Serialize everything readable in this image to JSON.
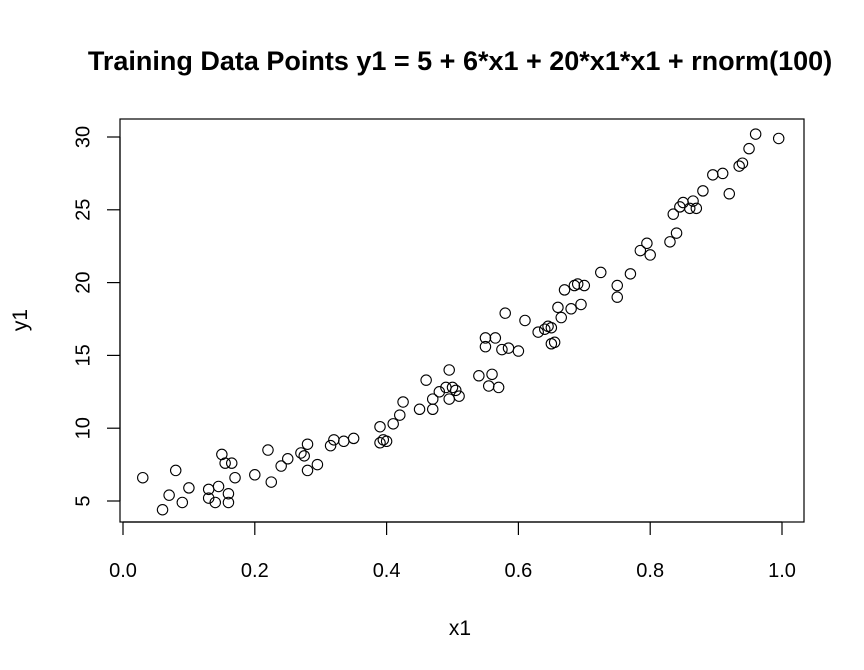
{
  "chart_data": {
    "type": "scatter",
    "title": "Training Data Points y1 = 5 + 6*x1 + 20*x1*x1 + rnorm(100)",
    "xlabel": "x1",
    "ylabel": "y1",
    "xlim": [
      0.0,
      1.0
    ],
    "ylim": [
      5,
      30
    ],
    "x_ticks": [
      "0.0",
      "0.2",
      "0.4",
      "0.6",
      "0.8",
      "1.0"
    ],
    "y_ticks": [
      "5",
      "10",
      "15",
      "20",
      "25",
      "30"
    ],
    "grid": false,
    "legend": false,
    "marker": "open-circle",
    "marker_color": "#000000",
    "series": [
      {
        "points": [
          [
            0.03,
            6.6
          ],
          [
            0.06,
            4.4
          ],
          [
            0.07,
            5.4
          ],
          [
            0.08,
            7.1
          ],
          [
            0.09,
            4.9
          ],
          [
            0.1,
            5.9
          ],
          [
            0.13,
            5.8
          ],
          [
            0.13,
            5.2
          ],
          [
            0.14,
            4.9
          ],
          [
            0.145,
            6.0
          ],
          [
            0.15,
            8.2
          ],
          [
            0.155,
            7.6
          ],
          [
            0.16,
            4.9
          ],
          [
            0.16,
            5.5
          ],
          [
            0.165,
            7.6
          ],
          [
            0.17,
            6.6
          ],
          [
            0.2,
            6.8
          ],
          [
            0.22,
            8.5
          ],
          [
            0.225,
            6.3
          ],
          [
            0.24,
            7.4
          ],
          [
            0.25,
            7.9
          ],
          [
            0.27,
            8.3
          ],
          [
            0.275,
            8.1
          ],
          [
            0.28,
            8.9
          ],
          [
            0.28,
            7.1
          ],
          [
            0.295,
            7.5
          ],
          [
            0.315,
            8.8
          ],
          [
            0.32,
            9.2
          ],
          [
            0.335,
            9.1
          ],
          [
            0.35,
            9.3
          ],
          [
            0.39,
            10.1
          ],
          [
            0.39,
            9.0
          ],
          [
            0.395,
            9.2
          ],
          [
            0.4,
            9.1
          ],
          [
            0.41,
            10.3
          ],
          [
            0.42,
            10.9
          ],
          [
            0.425,
            11.8
          ],
          [
            0.45,
            11.3
          ],
          [
            0.46,
            13.3
          ],
          [
            0.47,
            12.0
          ],
          [
            0.47,
            11.3
          ],
          [
            0.48,
            12.5
          ],
          [
            0.49,
            12.8
          ],
          [
            0.495,
            14.0
          ],
          [
            0.495,
            12.0
          ],
          [
            0.5,
            12.8
          ],
          [
            0.505,
            12.6
          ],
          [
            0.51,
            12.2
          ],
          [
            0.54,
            13.6
          ],
          [
            0.55,
            15.6
          ],
          [
            0.55,
            16.2
          ],
          [
            0.555,
            12.9
          ],
          [
            0.56,
            13.7
          ],
          [
            0.565,
            16.2
          ],
          [
            0.57,
            12.8
          ],
          [
            0.575,
            15.4
          ],
          [
            0.58,
            17.9
          ],
          [
            0.585,
            15.5
          ],
          [
            0.6,
            15.3
          ],
          [
            0.61,
            17.4
          ],
          [
            0.63,
            16.6
          ],
          [
            0.64,
            16.8
          ],
          [
            0.645,
            17.0
          ],
          [
            0.65,
            16.9
          ],
          [
            0.65,
            15.8
          ],
          [
            0.655,
            15.9
          ],
          [
            0.66,
            18.3
          ],
          [
            0.665,
            17.6
          ],
          [
            0.67,
            19.5
          ],
          [
            0.68,
            18.2
          ],
          [
            0.685,
            19.8
          ],
          [
            0.69,
            19.9
          ],
          [
            0.695,
            18.5
          ],
          [
            0.7,
            19.8
          ],
          [
            0.725,
            20.7
          ],
          [
            0.75,
            19.0
          ],
          [
            0.75,
            19.8
          ],
          [
            0.77,
            20.6
          ],
          [
            0.785,
            22.2
          ],
          [
            0.795,
            22.7
          ],
          [
            0.8,
            21.9
          ],
          [
            0.83,
            22.8
          ],
          [
            0.835,
            24.7
          ],
          [
            0.84,
            23.4
          ],
          [
            0.845,
            25.2
          ],
          [
            0.85,
            25.5
          ],
          [
            0.86,
            25.1
          ],
          [
            0.865,
            25.6
          ],
          [
            0.87,
            25.1
          ],
          [
            0.88,
            26.3
          ],
          [
            0.895,
            27.4
          ],
          [
            0.91,
            27.5
          ],
          [
            0.92,
            26.1
          ],
          [
            0.935,
            28.0
          ],
          [
            0.94,
            28.2
          ],
          [
            0.95,
            29.2
          ],
          [
            0.96,
            30.2
          ],
          [
            0.995,
            29.9
          ]
        ]
      }
    ]
  }
}
